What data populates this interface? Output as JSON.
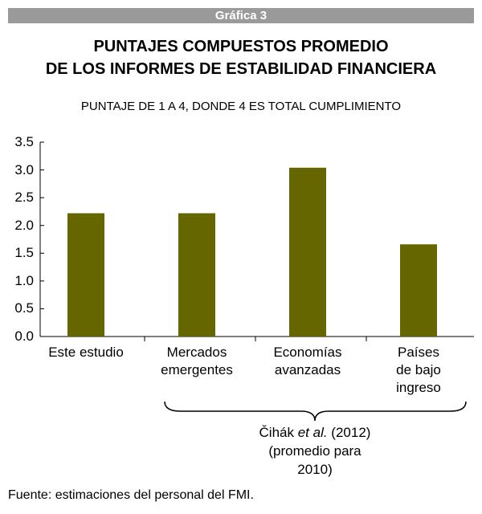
{
  "header": "Gráfica 3",
  "chart_data": {
    "type": "bar",
    "title": "PUNTAJES COMPUESTOS PROMEDIO\nDE LOS INFORMES DE ESTABILIDAD FINANCIERA",
    "subtitle": "PUNTAJE DE 1 A 4, DONDE 4 ES TOTAL CUMPLIMIENTO",
    "categories": [
      "Este estudio",
      "Mercados\nemergentes",
      "Economías\navanzadas",
      "Países\nde bajo\ningreso"
    ],
    "values": [
      2.22,
      2.22,
      3.04,
      1.66
    ],
    "color": "#666600",
    "ylim": [
      0,
      3.5
    ],
    "yticks": [
      {
        "value": 0,
        "label": "0.0"
      },
      0.5,
      {
        "value": 1,
        "label": "1.0"
      },
      1.5,
      {
        "value": 2,
        "label": "2.0"
      },
      2.5,
      {
        "value": 3,
        "label": "3.0"
      },
      3.5
    ],
    "grid": false,
    "annotation": [
      "Čihák ",
      "et al.",
      " (2012)\n(promedio para\n2010)"
    ],
    "source": "Fuente: estimaciones del personal del FMI."
  }
}
